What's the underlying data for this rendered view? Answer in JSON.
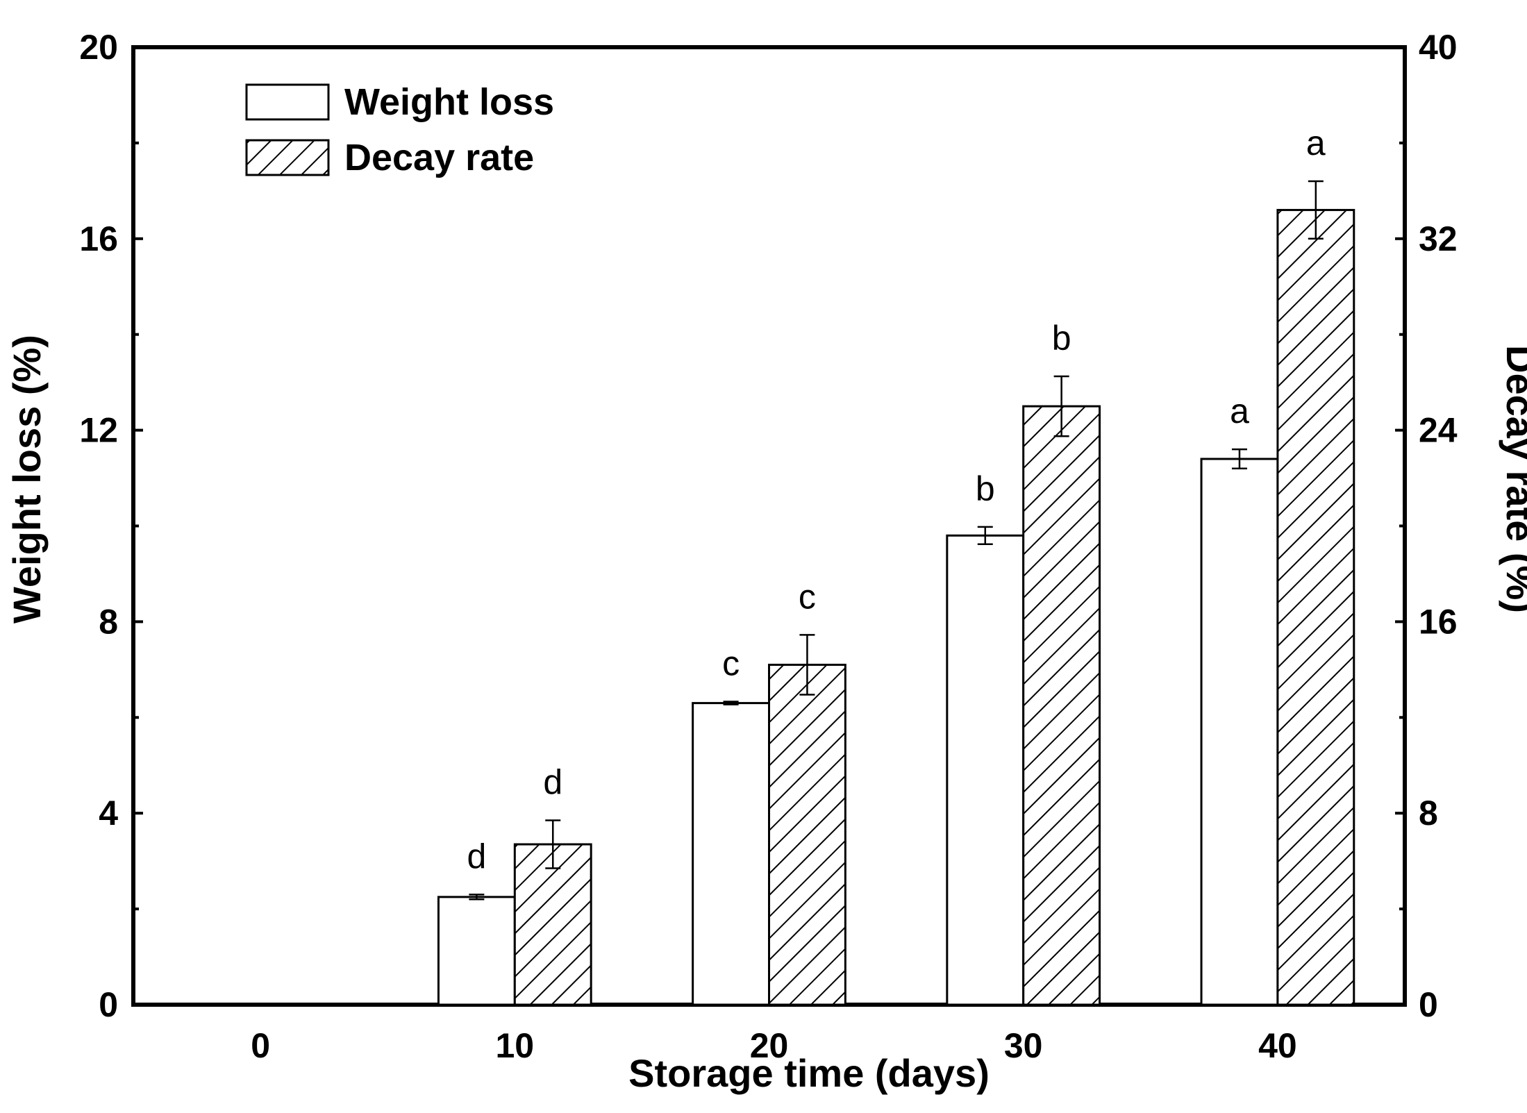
{
  "chart_data": {
    "type": "bar",
    "title": "",
    "xlabel": "Storage time (days)",
    "ylabel": "Weight loss (%)",
    "y2label": "Decay rate (%)",
    "categories": [
      "0",
      "10",
      "20",
      "30",
      "40"
    ],
    "x_values": [
      0,
      10,
      20,
      30,
      40
    ],
    "xlim": [
      -5,
      45
    ],
    "ylim": [
      0,
      20
    ],
    "y2lim": [
      0,
      40
    ],
    "yticks": [
      "0",
      "4",
      "8",
      "12",
      "16",
      "20"
    ],
    "y2ticks": [
      "0",
      "8",
      "16",
      "24",
      "32",
      "40"
    ],
    "series": [
      {
        "name": "Weight loss",
        "axis": "left",
        "pattern": "open",
        "values": [
          0,
          2.25,
          6.3,
          9.8,
          11.4
        ],
        "errors": [
          0,
          0.05,
          0.03,
          0.18,
          0.2
        ],
        "labels": [
          "",
          "d",
          "c",
          "b",
          "a"
        ]
      },
      {
        "name": "Decay rate",
        "axis": "right",
        "pattern": "hatched",
        "values": [
          0,
          6.7,
          14.2,
          25.0,
          33.2
        ],
        "errors": [
          0,
          1.0,
          1.25,
          1.25,
          1.2
        ],
        "labels": [
          "",
          "d",
          "c",
          "b",
          "a"
        ]
      }
    ],
    "legend": {
      "position": "top-left",
      "entries": [
        "Weight loss",
        "Decay rate"
      ]
    }
  }
}
